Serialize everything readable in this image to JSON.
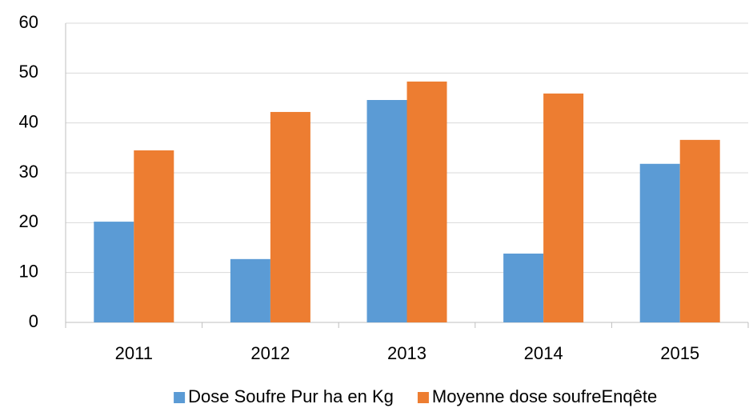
{
  "chart_data": {
    "type": "bar",
    "categories": [
      "2011",
      "2012",
      "2013",
      "2014",
      "2015"
    ],
    "series": [
      {
        "name": "Dose Soufre Pur ha en Kg",
        "color": "#5b9bd5",
        "values": [
          20.2,
          12.7,
          44.6,
          13.8,
          31.8
        ]
      },
      {
        "name": "Moyenne dose soufreEnqête",
        "color": "#ed7d31",
        "values": [
          34.5,
          42.2,
          48.3,
          45.9,
          36.6
        ]
      }
    ],
    "ylim": [
      0,
      60
    ],
    "yticks": [
      0,
      10,
      20,
      30,
      40,
      50,
      60
    ],
    "grid": true,
    "legend": "bottom"
  }
}
